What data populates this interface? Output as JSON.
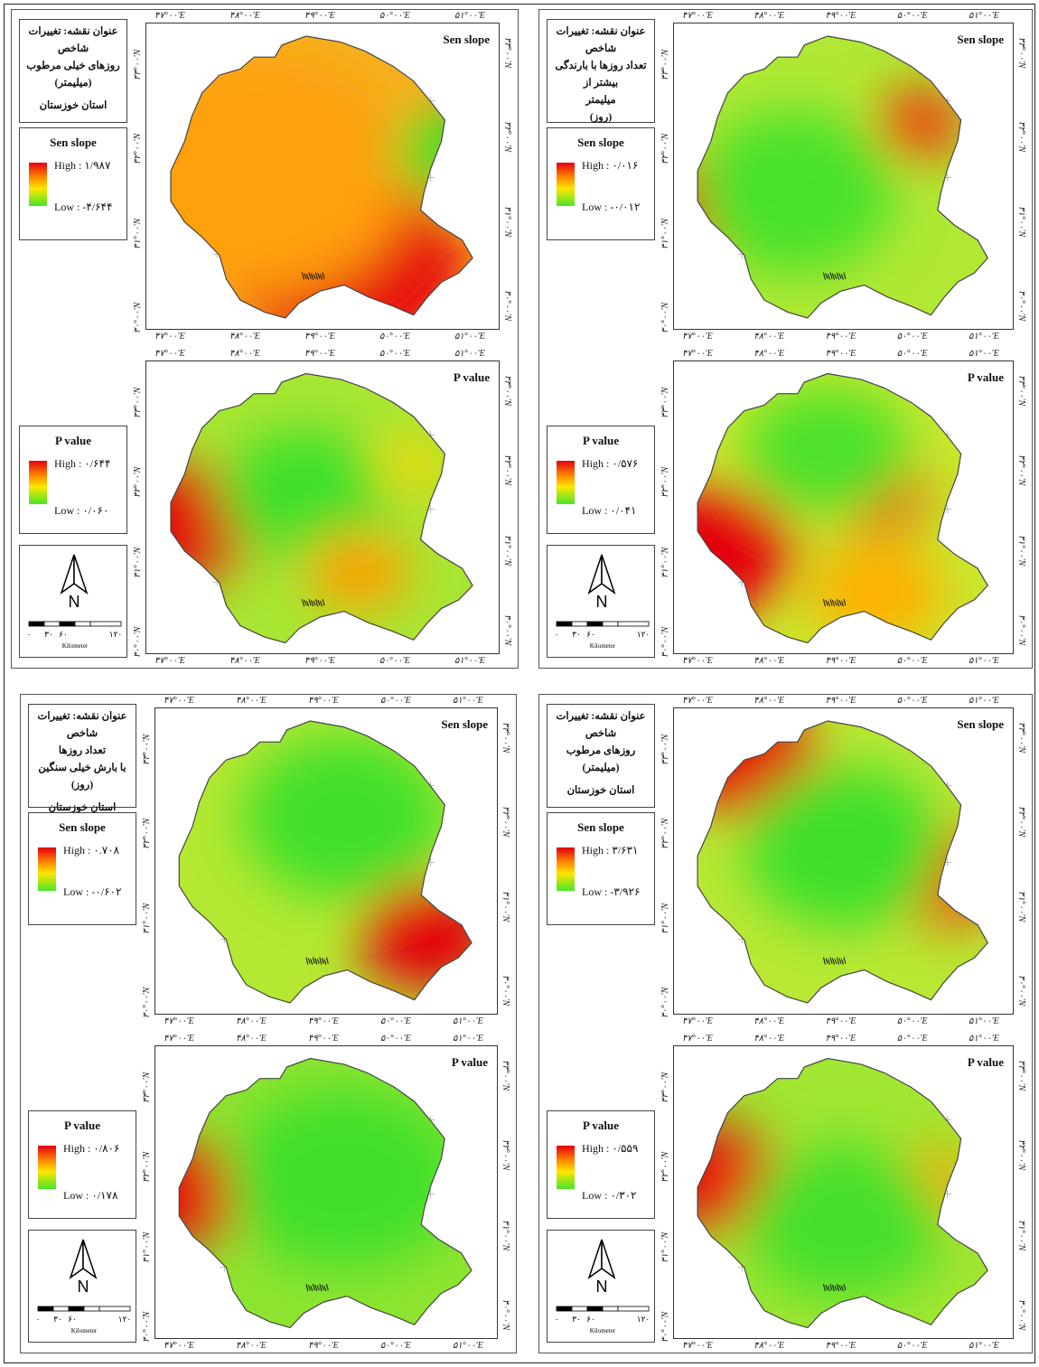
{
  "figures": [
    {
      "title_lines": [
        "عنوان نقشه: تغییرات شاخص",
        "روزهای خیلی مرطوب",
        "(میلیمتر)"
      ],
      "region": "استان خوزستان",
      "sen_slope": {
        "heading": "Sen slope",
        "legend_title": "Sen slope",
        "high": "High : ۱/۹۸۷",
        "low": "Low : -۴/۶۴۴"
      },
      "p_value": {
        "heading": "P value",
        "legend_title": "P value",
        "high": "High : ۰/۶۴۴",
        "low": "Low : ۰/۰۶۰"
      }
    },
    {
      "title_lines": [
        "عنوان نقشه: تغییرات شاخص",
        "تعداد روزها با بارندگی بیشتر از",
        "میلیمتر",
        "(روز)"
      ],
      "region": "استان خوزستان",
      "sen_slope": {
        "heading": "Sen slope",
        "legend_title": "Sen slope",
        "high": "High : ۰/۰۱۶",
        "low": "Low : -۰/۰۱۲"
      },
      "p_value": {
        "heading": "P value",
        "legend_title": "P value",
        "high": "High : ۰/۵۷۶",
        "low": "Low : ۰/۰۴۱"
      }
    },
    {
      "title_lines": [
        "عنوان نقشه: تغییرات شاخص",
        "تعداد روزها",
        "با بارش خیلی سنگین (روز)"
      ],
      "region": "استان خوزستان",
      "sen_slope": {
        "heading": "Sen slope",
        "legend_title": "Sen slope",
        "high": "High : ۰.۷۰۸",
        "low": "Low : -۰/۶۰۲"
      },
      "p_value": {
        "heading": "P value",
        "legend_title": "P value",
        "high": "High : ۰/۸۰۶",
        "low": "Low : ۰/۱۷۸"
      }
    },
    {
      "title_lines": [
        "عنوان نقشه: تغییرات شاخص",
        "روزهای مرطوب",
        "(میلیمتر)"
      ],
      "region": "استان خوزستان",
      "sen_slope": {
        "heading": "Sen slope",
        "legend_title": "Sen slope",
        "high": "High : ۳/۶۳۱",
        "low": "Low : -۳/۹۲۶"
      },
      "p_value": {
        "heading": "P value",
        "legend_title": "P value",
        "high": "High : ۰/۵۵۹",
        "low": "Low : ۰/۳۰۲"
      }
    }
  ],
  "axes": {
    "lon_ticks": [
      "۴۷°۰۰'E",
      "۴۸°۰۰'E",
      "۴۹°۰۰'E",
      "۵۰°۰۰'E",
      "۵۱°۰۰'E"
    ],
    "lat_ticks": [
      "۳۰°۰۰'N",
      "۳۱°۰۰'N",
      "۳۲°۰۰'N",
      "۳۳°۰۰'N"
    ]
  },
  "north_arrow": {
    "letter": "N"
  },
  "scale_bar": {
    "ticks": [
      "۰",
      "۳۰",
      "۶۰",
      "۱۲۰"
    ],
    "unit": "Kilometer"
  },
  "colors": {
    "high": "#e4000f",
    "mid": "#ffe600",
    "low": "#47e62a"
  }
}
